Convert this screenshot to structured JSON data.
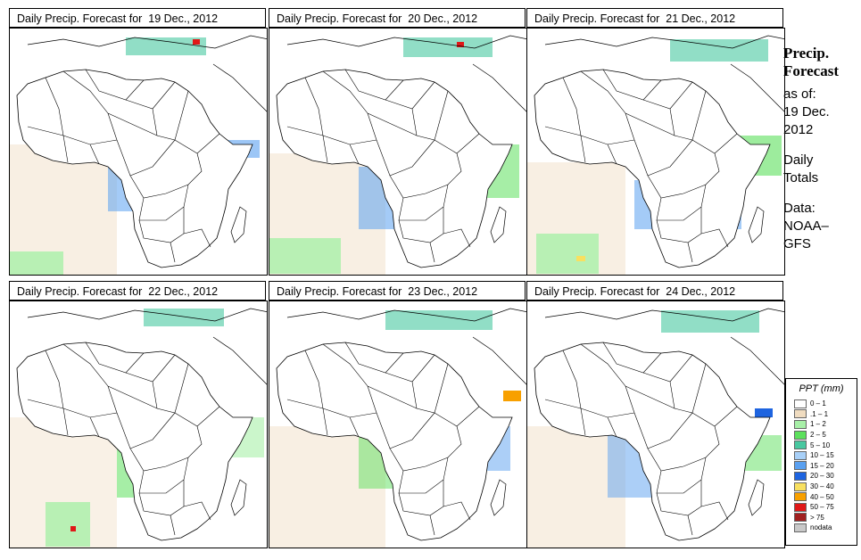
{
  "panels": [
    {
      "title": "Daily Precip. Forecast for  19 Dec., 2012"
    },
    {
      "title": "Daily Precip. Forecast for  20 Dec., 2012"
    },
    {
      "title": "Daily Precip. Forecast for  21 Dec., 2012"
    },
    {
      "title": "Daily Precip. Forecast for  22 Dec., 2012"
    },
    {
      "title": "Daily Precip. Forecast for  23 Dec., 2012"
    },
    {
      "title": "Daily Precip. Forecast for  24 Dec., 2012"
    }
  ],
  "side": {
    "heading_line1": "Precip.",
    "heading_line2": "Forecast",
    "asof_line1": "as of:",
    "asof_line2": "19 Dec.",
    "asof_line3": "2012",
    "daily_line1": "Daily",
    "daily_line2": "Totals",
    "data_line1": "Data:",
    "data_line2": "NOAA–",
    "data_line3": "GFS"
  },
  "legend": {
    "title": "PPT (mm)",
    "items": [
      {
        "label": "0 – 1",
        "color": "#ffffff"
      },
      {
        "label": ".1 – 1",
        "color": "#f0dcc0"
      },
      {
        "label": "1 – 2",
        "color": "#a8f0a8"
      },
      {
        "label": "2 – 5",
        "color": "#5ce05c"
      },
      {
        "label": "5 – 10",
        "color": "#48c8a0"
      },
      {
        "label": "10 – 15",
        "color": "#a8d0f8"
      },
      {
        "label": "15 – 20",
        "color": "#5aa0f0"
      },
      {
        "label": "20 – 30",
        "color": "#1e64e0"
      },
      {
        "label": "30 – 40",
        "color": "#f8e060"
      },
      {
        "label": "40 – 50",
        "color": "#f8a000"
      },
      {
        "label": "50 – 75",
        "color": "#e01818"
      },
      {
        "label": "> 75",
        "color": "#a02020"
      },
      {
        "label": "nodata",
        "color": "#c8c8c8"
      }
    ]
  }
}
